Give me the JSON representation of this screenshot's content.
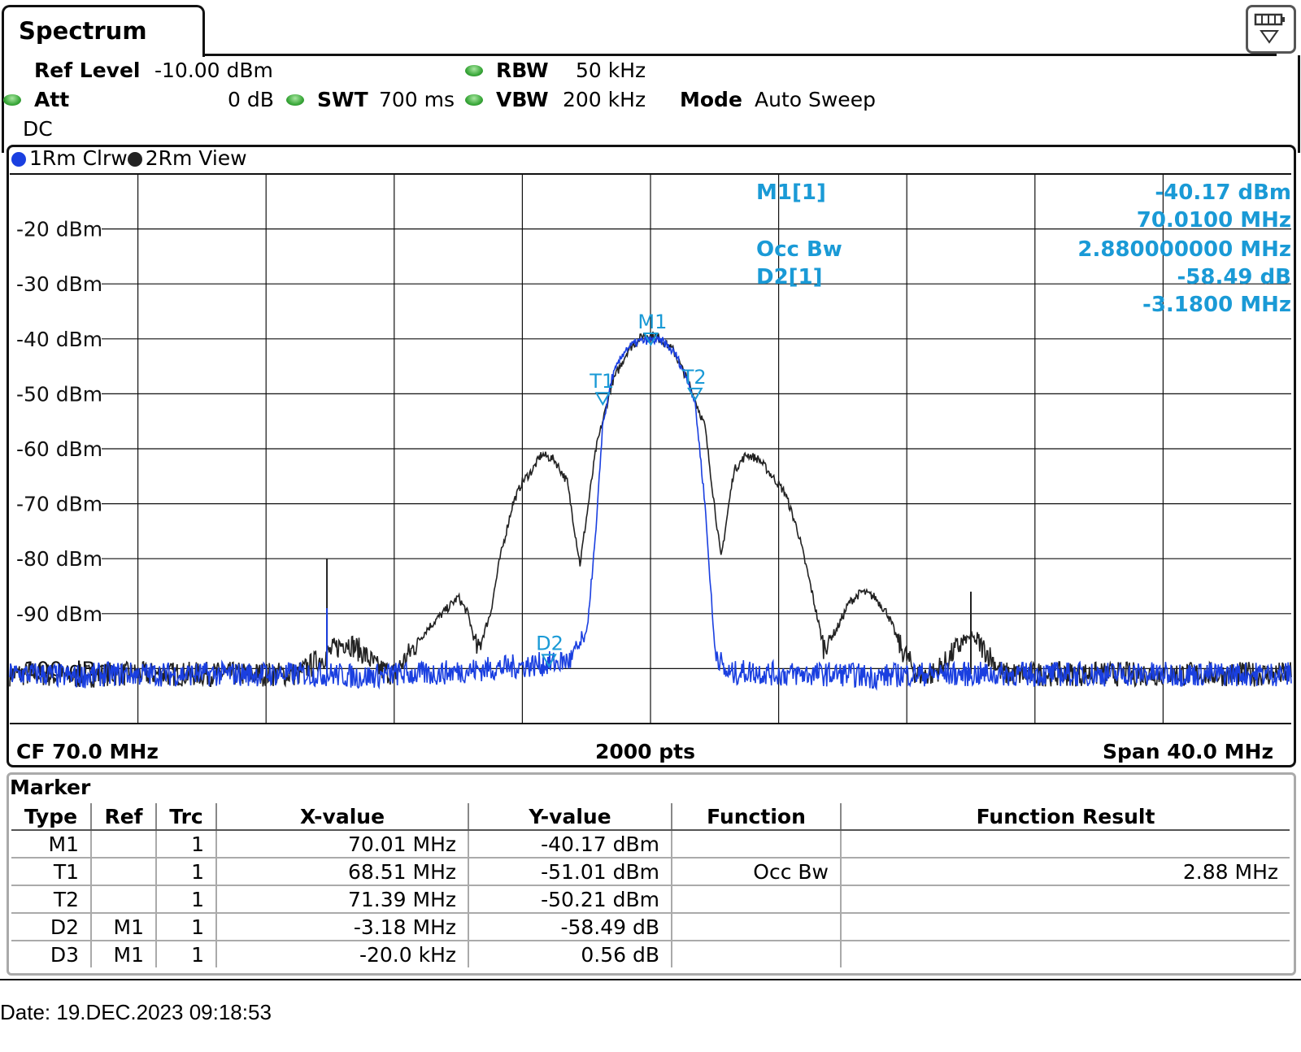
{
  "tab": {
    "title": "Spectrum"
  },
  "params": {
    "ref_level_label": "Ref Level",
    "ref_level_value": "-10.00 dBm",
    "att_label": "Att",
    "att_value": "0 dB",
    "swt_label": "SWT",
    "swt_value": "700 ms",
    "rbw_label": "RBW",
    "rbw_value": "50 kHz",
    "vbw_label": "VBW",
    "vbw_value": "200 kHz",
    "mode_label": "Mode",
    "mode_value": "Auto Sweep",
    "coupling": "DC"
  },
  "traces": [
    {
      "label": "1Rm Clrw",
      "color": "#1a3fe0"
    },
    {
      "label": "2Rm View",
      "color": "#222222"
    }
  ],
  "marker_info": {
    "m1_label": "M1[1]",
    "m1_level": "-40.17 dBm",
    "m1_freq": "70.0100 MHz",
    "occ_label": "Occ Bw",
    "occ_value": "2.880000000 MHz",
    "d2_label": "D2[1]",
    "d2_level": "-58.49 dB",
    "d2_freq": "-3.1800 MHz"
  },
  "chart_data": {
    "type": "line",
    "yunit": "dBm",
    "ytick_labels": [
      "-20 dBm",
      "-30 dBm",
      "-40 dBm",
      "-50 dBm",
      "-60 dBm",
      "-70 dBm",
      "-80 dBm",
      "-90 dBm",
      "-100 dBm"
    ],
    "ylim": [
      -110,
      -10
    ],
    "xlim": [
      50,
      90
    ],
    "grid": true,
    "markers": [
      {
        "name": "M1",
        "x": 70.01,
        "y": -40.17
      },
      {
        "name": "T1",
        "x": 68.51,
        "y": -51.01
      },
      {
        "name": "T2",
        "x": 71.39,
        "y": -50.21
      },
      {
        "name": "D2",
        "x": 66.83,
        "y": -98.66
      },
      {
        "name": "D3",
        "x": 69.99,
        "y": -39.61
      }
    ],
    "series": [
      {
        "name": "1Rm Clrw",
        "color": "#1a3fe0",
        "x": [
          50,
          51,
          52,
          53,
          54,
          55,
          56,
          57,
          58,
          59,
          60,
          61,
          62,
          63,
          64,
          65,
          66,
          67,
          67.5,
          68,
          68.3,
          68.5,
          68.8,
          69.2,
          69.6,
          70,
          70.4,
          70.8,
          71.2,
          71.4,
          71.7,
          72,
          72.3,
          72.5,
          73,
          74,
          75,
          76,
          77,
          78,
          79,
          80,
          81,
          82,
          83,
          84,
          85,
          86,
          87,
          88,
          89,
          90
        ],
        "y": [
          -101,
          -101,
          -101.5,
          -101,
          -101,
          -101,
          -101,
          -101,
          -101,
          -101,
          -101,
          -101.5,
          -101,
          -101,
          -100.5,
          -100,
          -99.5,
          -99,
          -98.5,
          -94,
          -75,
          -56,
          -47,
          -42,
          -40.5,
          -40.2,
          -40.5,
          -43,
          -48,
          -52,
          -70,
          -96,
          -100.5,
          -101,
          -100.5,
          -101,
          -101,
          -101,
          -101.5,
          -101,
          -101,
          -101,
          -101,
          -101,
          -101,
          -101,
          -101,
          -101,
          -101,
          -101,
          -101,
          -101
        ],
        "spikes": [
          {
            "x": 59.9,
            "y": -89
          }
        ]
      },
      {
        "name": "2Rm View",
        "color": "#222222",
        "x": [
          50,
          51,
          52,
          53,
          54,
          55,
          56,
          57,
          58,
          59,
          59.5,
          60,
          60.5,
          61,
          61.5,
          62,
          62.5,
          63,
          63.5,
          64,
          64.3,
          64.6,
          65,
          65.3,
          65.7,
          66,
          66.3,
          66.6,
          67,
          67.4,
          67.8,
          68.3,
          68.8,
          69.3,
          69.8,
          70.2,
          70.7,
          71.2,
          71.7,
          72.2,
          72.6,
          73,
          73.4,
          73.8,
          74.2,
          74.6,
          75,
          75.4,
          75.8,
          76.2,
          76.6,
          77,
          77.4,
          77.8,
          78.3,
          78.8,
          79.2,
          79.6,
          80,
          80.5,
          81,
          81.5,
          82,
          83,
          84,
          85,
          86,
          87,
          88,
          89,
          90
        ],
        "y": [
          -101,
          -101,
          -101.5,
          -101,
          -101,
          -101,
          -101,
          -101,
          -101,
          -101,
          -99,
          -97,
          -95,
          -97,
          -100,
          -101,
          -97,
          -93,
          -90,
          -87,
          -90,
          -97,
          -90,
          -80,
          -70,
          -66,
          -64,
          -61,
          -62,
          -66,
          -81,
          -60,
          -48,
          -42,
          -39.2,
          -39.5,
          -42,
          -48,
          -56,
          -80,
          -64,
          -61,
          -62,
          -65,
          -68,
          -75,
          -85,
          -96,
          -93,
          -88,
          -86,
          -87,
          -90,
          -96,
          -101,
          -101,
          -99,
          -96,
          -94,
          -97,
          -101,
          -101,
          -101,
          -101,
          -101,
          -101,
          -101,
          -101,
          -101,
          -101,
          -101
        ],
        "spikes": [
          {
            "x": 59.9,
            "y": -80
          },
          {
            "x": 80,
            "y": -86
          }
        ]
      }
    ]
  },
  "footer": {
    "cf": "CF 70.0 MHz",
    "pts": "2000 pts",
    "span": "Span 40.0 MHz"
  },
  "marker_table": {
    "title": "Marker",
    "headers": [
      "Type",
      "Ref",
      "Trc",
      "X-value",
      "Y-value",
      "Function",
      "Function Result"
    ],
    "rows": [
      [
        "M1",
        "",
        "1",
        "70.01 MHz",
        "-40.17 dBm",
        "",
        ""
      ],
      [
        "T1",
        "",
        "1",
        "68.51 MHz",
        "-51.01 dBm",
        "Occ Bw",
        "2.88 MHz"
      ],
      [
        "T2",
        "",
        "1",
        "71.39 MHz",
        "-50.21 dBm",
        "",
        ""
      ],
      [
        "D2",
        "M1",
        "1",
        "-3.18 MHz",
        "-58.49 dB",
        "",
        ""
      ],
      [
        "D3",
        "M1",
        "1",
        "-20.0 kHz",
        "0.56 dB",
        "",
        ""
      ]
    ]
  },
  "timestamp": "Date: 19.DEC.2023  09:18:53"
}
